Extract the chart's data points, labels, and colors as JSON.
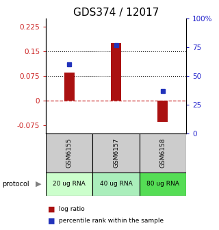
{
  "title": "GDS374 / 12017",
  "samples": [
    "GSM6155",
    "GSM6157",
    "GSM6158"
  ],
  "log_ratios": [
    0.085,
    0.175,
    -0.065
  ],
  "percentile_ranks_pct": [
    60,
    77,
    37
  ],
  "protocol_labels": [
    "20 ug RNA",
    "40 ug RNA",
    "80 ug RNA"
  ],
  "protocol_colors": [
    "#ccffcc",
    "#aaeebb",
    "#55dd55"
  ],
  "left_ylim": [
    -0.1,
    0.25
  ],
  "left_yticks": [
    -0.075,
    0,
    0.075,
    0.15,
    0.225
  ],
  "left_yticklabels": [
    "-0.075",
    "0",
    "0.075",
    "0.15",
    "0.225"
  ],
  "right_yticklabels": [
    "0",
    "25",
    "50",
    "75",
    "100%"
  ],
  "hline_dotted": [
    0.075,
    0.15
  ],
  "hline_zero": 0,
  "bar_color": "#aa1111",
  "dot_color": "#2233bb",
  "bg_color": "#ffffff",
  "sample_cell_color": "#cccccc",
  "title_fontsize": 11,
  "tick_fontsize": 7.5,
  "left_tick_color": "#cc2222",
  "right_tick_color": "#2222cc"
}
